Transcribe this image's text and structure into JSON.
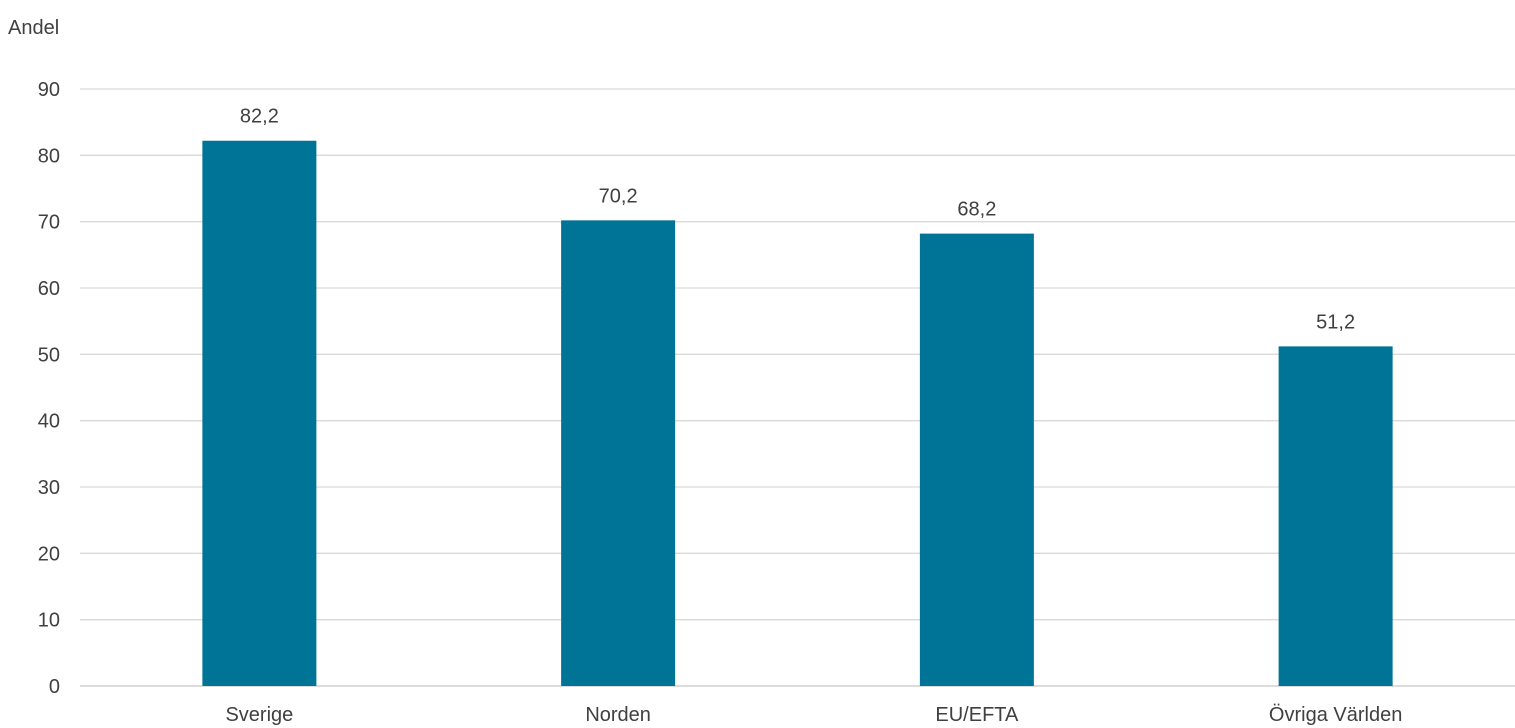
{
  "chart_data": {
    "type": "bar",
    "title": "",
    "ylabel": "Andel",
    "xlabel": "",
    "categories": [
      "Sverige",
      "Norden",
      "EU/EFTA",
      "Övriga Världen"
    ],
    "values": [
      82.2,
      70.2,
      68.2,
      51.2
    ],
    "data_labels": [
      "82,2",
      "70,2",
      "68,2",
      "51,2"
    ],
    "ylim": [
      0,
      90
    ],
    "yticks": [
      0,
      10,
      20,
      30,
      40,
      50,
      60,
      70,
      80,
      90
    ],
    "ytick_labels": [
      "0",
      "10",
      "20",
      "30",
      "40",
      "50",
      "60",
      "70",
      "80",
      "90"
    ],
    "grid": true,
    "legend": "none",
    "bar_color": "#007496"
  }
}
